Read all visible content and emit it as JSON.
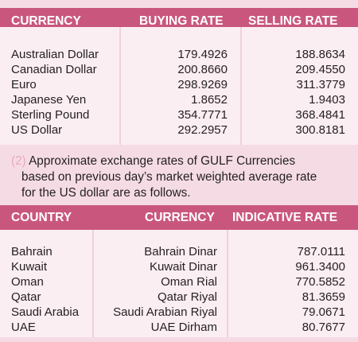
{
  "table1": {
    "headers": [
      "CURRENCY",
      "BUYING RATE",
      "SELLING RATE"
    ],
    "rows": [
      {
        "currency": "Australian Dollar",
        "buying": "179.4926",
        "selling": "188.8634"
      },
      {
        "currency": "Canadian Dollar",
        "buying": "200.8660",
        "selling": "209.4550"
      },
      {
        "currency": "Euro",
        "buying": "298.9269",
        "selling": "311.3779"
      },
      {
        "currency": "Japanese Yen",
        "buying": "1.8652",
        "selling": "1.9403"
      },
      {
        "currency": "Sterling Pound",
        "buying": "354.7771",
        "selling": "368.4841"
      },
      {
        "currency": "US Dollar",
        "buying": "292.2957",
        "selling": "300.8181"
      }
    ]
  },
  "note": {
    "number": "(2)",
    "lines": [
      "Approximate exchange rates of GULF Currencies",
      "based on previous day’s market weighted average rate",
      "for the US dollar are as follows."
    ]
  },
  "table2": {
    "headers": [
      "COUNTRY",
      "CURRENCY",
      "INDICATIVE RATE"
    ],
    "rows": [
      {
        "country": "Bahrain",
        "currency": "Bahrain Dinar",
        "rate": "787.0111"
      },
      {
        "country": "Kuwait",
        "currency": "Kuwait Dinar",
        "rate": "961.3400"
      },
      {
        "country": "Oman",
        "currency": "Oman Rial",
        "rate": "770.5852"
      },
      {
        "country": "Qatar",
        "currency": "Qatar Riyal",
        "rate": "81.3659"
      },
      {
        "country": "Saudi Arabia",
        "currency": "Saudi Arabian Riyal",
        "rate": "79.0671"
      },
      {
        "country": "UAE",
        "currency": "UAE Dirham",
        "rate": "80.7677"
      }
    ]
  }
}
